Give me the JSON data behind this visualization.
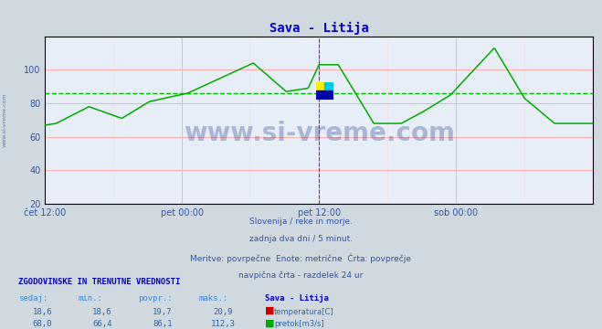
{
  "title": "Sava - Litija",
  "title_color": "#0000cc",
  "bg_color": "#d0d8e0",
  "plot_bg_color": "#e8eef8",
  "grid_color_major": "#ffaaaa",
  "xlim": [
    0,
    576
  ],
  "ylim": [
    20,
    120
  ],
  "yticks": [
    20,
    40,
    60,
    80,
    100
  ],
  "xtick_labels": [
    "čet 12:00",
    "pet 00:00",
    "pet 12:00",
    "sob 00:00"
  ],
  "xtick_positions": [
    0,
    144,
    288,
    432
  ],
  "vline_color": "#cc00cc",
  "avg_line_value": 86.1,
  "avg_line_color": "#00bb00",
  "temp_color": "#cc0000",
  "flow_color": "#00aa00",
  "temp_avg": 19.7,
  "temp_min": 18.6,
  "temp_max": 20.9,
  "temp_now": 18.6,
  "flow_avg": 86.1,
  "flow_min": 66.4,
  "flow_max": 112.3,
  "flow_now": 68.0,
  "watermark": "www.si-vreme.com",
  "watermark_color": "#1a3a8a",
  "text1": "Slovenija / reke in morje.",
  "text2": "zadnja dva dni / 5 minut.",
  "text3": "Meritve: povrpečne  Enote: metrične  Črta: povprečje",
  "text4": "navpična črta - razdelek 24 ur",
  "text_color": "#3355aa",
  "table_header_color": "#0000bb",
  "sidebar_color": "#336699",
  "sidebar_text": "www.si-vreme.com"
}
